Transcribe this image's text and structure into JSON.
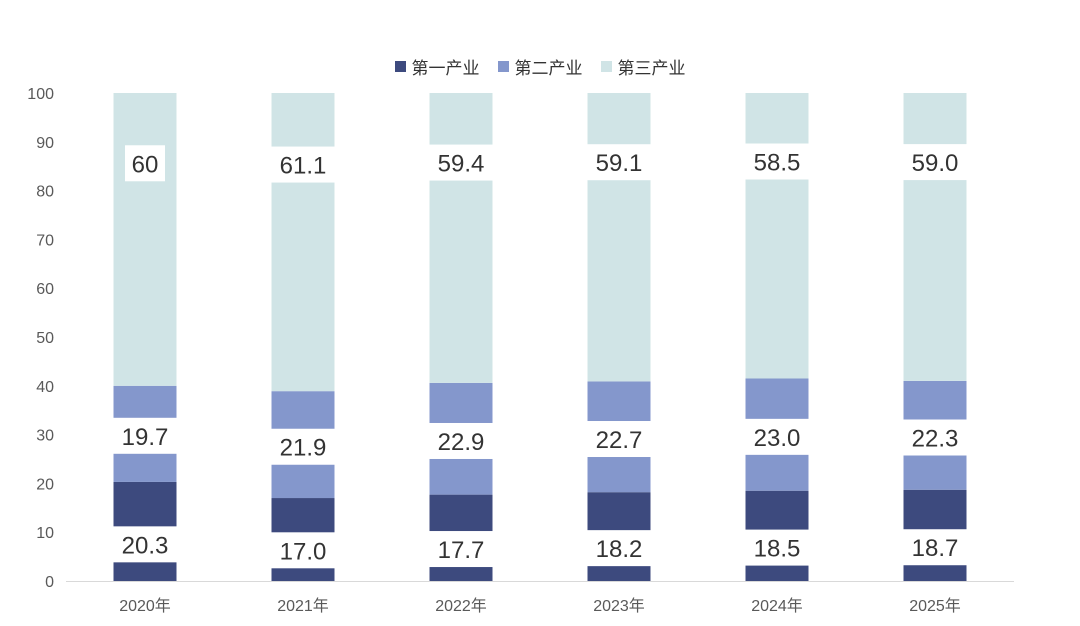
{
  "chart_data": {
    "type": "bar",
    "stacked": true,
    "categories": [
      "2020年",
      "2021年",
      "2022年",
      "2023年",
      "2024年",
      "2025年"
    ],
    "series": [
      {
        "name": "第一产业",
        "color": "#3d4a7e",
        "values": [
          20.3,
          17.0,
          17.7,
          18.2,
          18.5,
          18.7
        ],
        "labels": [
          "20.3",
          "17.0",
          "17.7",
          "18.2",
          "18.5",
          "18.7"
        ]
      },
      {
        "name": "第二产业",
        "color": "#8497cc",
        "values": [
          19.7,
          21.9,
          22.9,
          22.7,
          23.0,
          22.3
        ],
        "labels": [
          "19.7",
          "21.9",
          "22.9",
          "22.7",
          "23.0",
          "22.3"
        ]
      },
      {
        "name": "第三产业",
        "color": "#d0e4e6",
        "values": [
          60,
          61.1,
          59.4,
          59.1,
          58.5,
          59.0
        ],
        "labels": [
          "60",
          "61.1",
          "59.4",
          "59.1",
          "58.5",
          "59.0"
        ]
      }
    ],
    "ylim": [
      0,
      100
    ],
    "yticks": [
      0,
      10,
      20,
      30,
      40,
      50,
      60,
      70,
      80,
      90,
      100
    ],
    "title": "",
    "xlabel": "",
    "ylabel": "",
    "legend_position": "top-center",
    "grid": false
  }
}
